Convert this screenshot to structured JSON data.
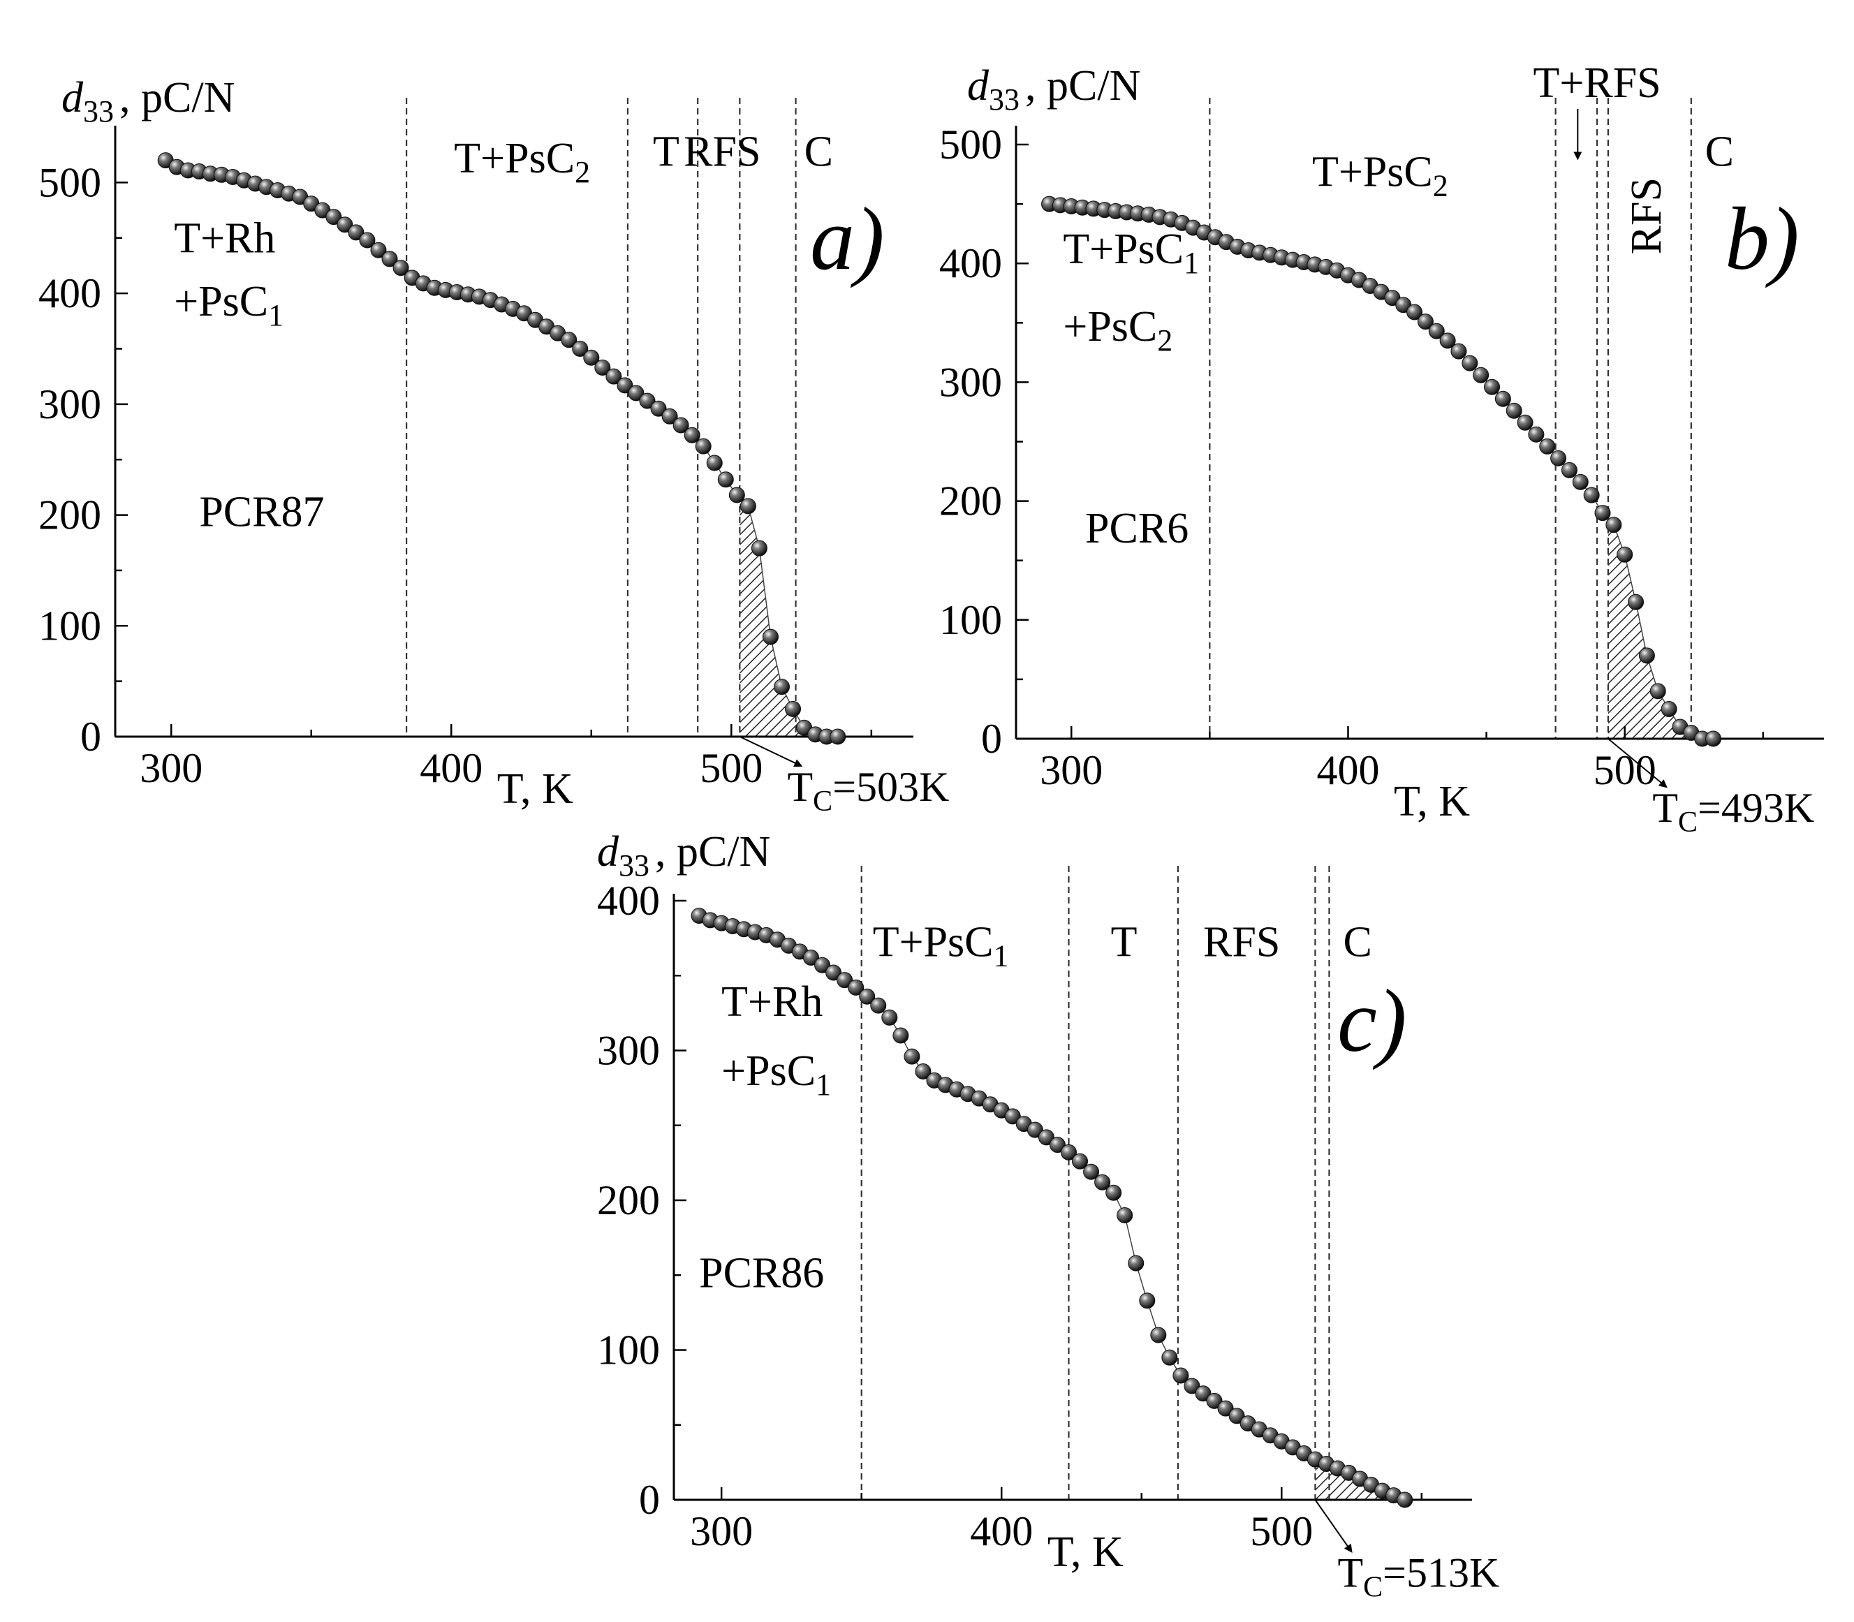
{
  "chart_data": [
    {
      "type": "scatter",
      "panel": "a)",
      "sample": "PCR87",
      "ylabel_symbol": "d",
      "ylabel_sub": "33",
      "ylabel_unit": ", pC/N",
      "xlabel": "T, K",
      "xlim": [
        280,
        565
      ],
      "ylim": [
        0,
        545
      ],
      "xticks": [
        300,
        400,
        500
      ],
      "yticks": [
        0,
        100,
        200,
        300,
        400,
        500
      ],
      "phase_boundaries": [
        384,
        463,
        488,
        503,
        523
      ],
      "regions": [
        {
          "text": "T+Rh",
          "x": 301,
          "y": 437
        },
        {
          "text": "+PsC",
          "sub": "1",
          "x": 301,
          "y": 380
        },
        {
          "text": "T+PsC",
          "sub": "2",
          "x": 401,
          "y": 509
        },
        {
          "text": "T",
          "x": 472,
          "y": 515
        },
        {
          "text": "RFS",
          "x": 483,
          "y": 515
        },
        {
          "text": "C",
          "x": 526,
          "y": 515
        }
      ],
      "sample_pos": {
        "x": 310,
        "y": 190
      },
      "shaded_range": [
        503,
        540
      ],
      "tc": {
        "text": "T",
        "sub": "C",
        "value": "=503K",
        "point_x": 503,
        "label_x": 520,
        "label_y": -58
      },
      "data_x": [
        298,
        302,
        306,
        310,
        314,
        318,
        322,
        326,
        330,
        334,
        338,
        342,
        346,
        350,
        354,
        358,
        362,
        366,
        370,
        374,
        378,
        382,
        386,
        390,
        394,
        398,
        402,
        406,
        410,
        414,
        418,
        422,
        426,
        430,
        434,
        438,
        442,
        446,
        450,
        454,
        458,
        462,
        466,
        470,
        474,
        478,
        482,
        486,
        490,
        494,
        498,
        502,
        506,
        510,
        514,
        518,
        522,
        526,
        530,
        534,
        538
      ],
      "data_y": [
        520,
        514,
        511,
        510,
        508,
        507,
        505,
        502,
        499,
        496,
        493,
        490,
        487,
        481,
        475,
        469,
        462,
        455,
        448,
        439,
        431,
        423,
        414,
        409,
        405,
        403,
        401,
        399,
        397,
        394,
        390,
        386,
        382,
        376,
        370,
        364,
        358,
        350,
        342,
        333,
        325,
        317,
        310,
        303,
        296,
        289,
        281,
        272,
        262,
        247,
        232,
        218,
        208,
        170,
        90,
        45,
        25,
        8,
        2,
        0,
        0
      ]
    },
    {
      "type": "scatter",
      "panel": "b)",
      "sample": "PCR6",
      "ylabel_symbol": "d",
      "ylabel_sub": "33",
      "ylabel_unit": ", pC/N",
      "xlabel": "T, K",
      "xlim": [
        280,
        572
      ],
      "ylim": [
        0,
        510
      ],
      "xticks": [
        300,
        400,
        500
      ],
      "yticks": [
        0,
        100,
        200,
        300,
        400,
        500
      ],
      "phase_boundaries": [
        350,
        475,
        490,
        494,
        524
      ],
      "regions": [
        {
          "text": "T+PsC",
          "sub": "1",
          "x": 297,
          "y": 400
        },
        {
          "text": "+PsC",
          "sub": "2",
          "x": 297,
          "y": 335
        },
        {
          "text": "T+PsC",
          "sub": "2",
          "x": 387,
          "y": 465
        },
        {
          "text": "C",
          "x": 529,
          "y": 482
        }
      ],
      "rotated_region": {
        "text": "RFS",
        "x": 513,
        "y": 440
      },
      "arrow_region": {
        "text": "T+RFS",
        "x": 490,
        "y": 540,
        "arrow_from": 530,
        "arrow_to": 488,
        "arrow_x": 483
      },
      "sample_pos": {
        "x": 305,
        "y": 165
      },
      "shaded_range": [
        494,
        533
      ],
      "tc": {
        "text": "T",
        "sub": "C",
        "value": "=493K",
        "point_x": 494,
        "label_x": 510,
        "label_y": -70
      },
      "data_x": [
        292,
        296,
        300,
        304,
        308,
        312,
        316,
        320,
        324,
        328,
        332,
        336,
        340,
        344,
        348,
        352,
        356,
        360,
        364,
        368,
        372,
        376,
        380,
        384,
        388,
        392,
        396,
        400,
        404,
        408,
        412,
        416,
        420,
        424,
        428,
        432,
        436,
        440,
        444,
        448,
        452,
        456,
        460,
        464,
        468,
        472,
        476,
        480,
        484,
        488,
        492,
        496,
        500,
        504,
        508,
        512,
        516,
        520,
        524,
        528,
        532
      ],
      "data_y": [
        450,
        449,
        448,
        447,
        446,
        445,
        444,
        443,
        442,
        441,
        439,
        437,
        434,
        430,
        426,
        422,
        418,
        414,
        411,
        409,
        407,
        405,
        403,
        401,
        399,
        397,
        394,
        390,
        386,
        381,
        376,
        371,
        365,
        359,
        351,
        343,
        335,
        326,
        316,
        306,
        296,
        286,
        276,
        266,
        256,
        246,
        236,
        226,
        216,
        205,
        190,
        180,
        155,
        115,
        70,
        40,
        25,
        10,
        5,
        0,
        0
      ]
    },
    {
      "type": "scatter",
      "panel": "c)",
      "sample": "PCR86",
      "ylabel_symbol": "d",
      "ylabel_sub": "33",
      "ylabel_unit": ", pC/N",
      "xlabel": "T, K",
      "xlim": [
        283,
        568
      ],
      "ylim": [
        0,
        400
      ],
      "xticks": [
        300,
        400,
        500
      ],
      "yticks": [
        0,
        100,
        200,
        300,
        400
      ],
      "phase_boundaries": [
        350,
        424,
        463,
        512,
        517
      ],
      "regions": [
        {
          "text": "T+PsC",
          "sub": "1",
          "x": 354,
          "y": 363
        },
        {
          "text": "T",
          "x": 439,
          "y": 363
        },
        {
          "text": "RFS",
          "x": 472,
          "y": 363
        },
        {
          "text": "C",
          "x": 522,
          "y": 363
        },
        {
          "text": "T+Rh",
          "x": 300,
          "y": 323
        },
        {
          "text": "+PsC",
          "sub": "1",
          "x": 300,
          "y": 277
        }
      ],
      "sample_pos": {
        "x": 292,
        "y": 142
      },
      "shaded_range": [
        512,
        545
      ],
      "tc": {
        "text": "T",
        "sub": "C",
        "value": "=513K",
        "point_x": 512,
        "label_x": 520,
        "label_y": -58
      },
      "data_x": [
        292,
        296,
        300,
        304,
        308,
        312,
        316,
        320,
        324,
        328,
        332,
        336,
        340,
        344,
        348,
        352,
        356,
        360,
        364,
        368,
        372,
        376,
        380,
        384,
        388,
        392,
        396,
        400,
        404,
        408,
        412,
        416,
        420,
        424,
        428,
        432,
        436,
        440,
        444,
        448,
        452,
        456,
        460,
        464,
        468,
        472,
        476,
        480,
        484,
        488,
        492,
        496,
        500,
        504,
        508,
        512,
        516,
        520,
        524,
        528,
        532,
        536,
        540,
        544
      ],
      "data_y": [
        390,
        387,
        385,
        383,
        381,
        379,
        377,
        374,
        370,
        366,
        362,
        357,
        352,
        347,
        342,
        336,
        330,
        322,
        310,
        296,
        286,
        280,
        277,
        274,
        271,
        268,
        264,
        260,
        256,
        251,
        247,
        242,
        237,
        232,
        226,
        219,
        212,
        205,
        190,
        158,
        133,
        110,
        95,
        83,
        76,
        71,
        66,
        61,
        56,
        51,
        47,
        43,
        39,
        35,
        31,
        27,
        24,
        21,
        18,
        14,
        10,
        6,
        3,
        0
      ]
    }
  ]
}
